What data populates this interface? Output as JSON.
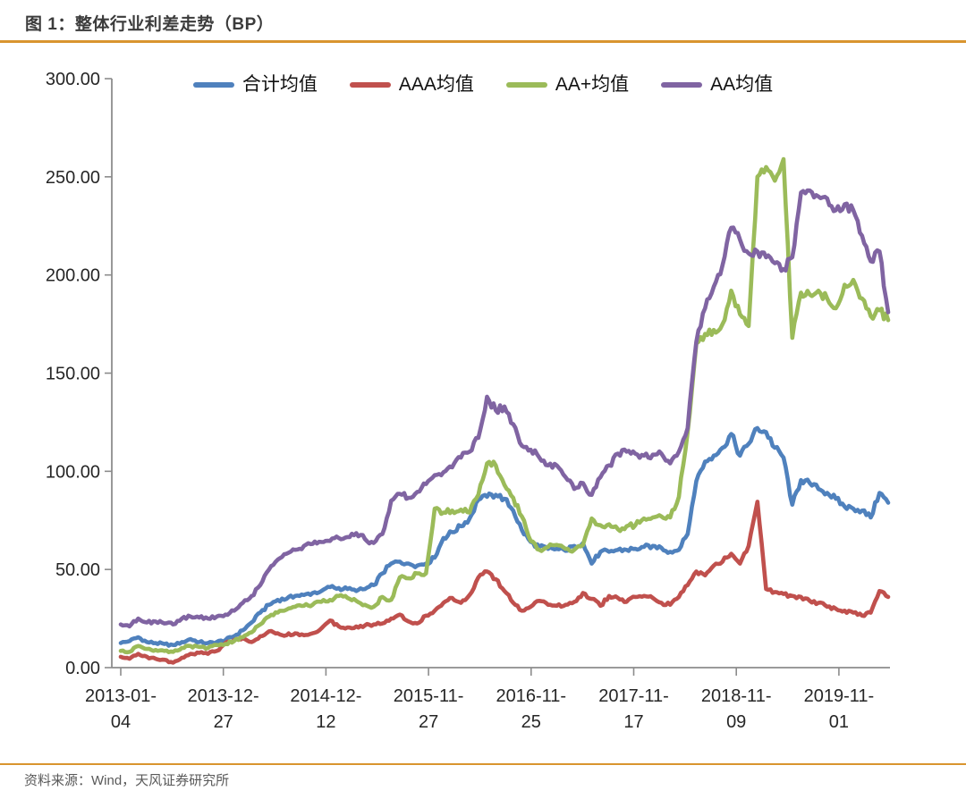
{
  "figure": {
    "title": "图 1：整体行业利差走势（BP）",
    "source": "资料来源：Wind，天风证券研究所"
  },
  "accent_rule_color": "#d9952f",
  "axis_color": "#8c8c8c",
  "chart_data": {
    "type": "line",
    "title": "整体行业利差走势（BP）",
    "unit": "BP",
    "grid": false,
    "legend_position": "top",
    "ylim": [
      0,
      300
    ],
    "y_tick_labels": [
      "0.00",
      "50.00",
      "100.00",
      "150.00",
      "200.00",
      "250.00",
      "300.00"
    ],
    "x_tick_labels": [
      "2013-01-04",
      "2013-12-27",
      "2014-12-12",
      "2015-11-27",
      "2016-11-25",
      "2017-11-17",
      "2018-11-09",
      "2019-11-01"
    ],
    "x": [
      "2013-01",
      "2013-02",
      "2013-03",
      "2013-04",
      "2013-05",
      "2013-06",
      "2013-07",
      "2013-08",
      "2013-09",
      "2013-10",
      "2013-11",
      "2013-12",
      "2014-01",
      "2014-02",
      "2014-03",
      "2014-04",
      "2014-05",
      "2014-06",
      "2014-07",
      "2014-08",
      "2014-09",
      "2014-10",
      "2014-11",
      "2014-12",
      "2015-01",
      "2015-02",
      "2015-03",
      "2015-04",
      "2015-05",
      "2015-06",
      "2015-07",
      "2015-08",
      "2015-09",
      "2015-10",
      "2015-11",
      "2015-12",
      "2016-01",
      "2016-02",
      "2016-03",
      "2016-04",
      "2016-05",
      "2016-06",
      "2016-07",
      "2016-08",
      "2016-09",
      "2016-10",
      "2016-11",
      "2016-12",
      "2017-01",
      "2017-02",
      "2017-03",
      "2017-04",
      "2017-05",
      "2017-06",
      "2017-07",
      "2017-08",
      "2017-09",
      "2017-10",
      "2017-11",
      "2017-12",
      "2018-01",
      "2018-02",
      "2018-03",
      "2018-04",
      "2018-05",
      "2018-06",
      "2018-07",
      "2018-08",
      "2018-09",
      "2018-10",
      "2018-11",
      "2018-12",
      "2019-01",
      "2019-02",
      "2019-03",
      "2019-04",
      "2019-05",
      "2019-06",
      "2019-07",
      "2019-08",
      "2019-09",
      "2019-10",
      "2019-11",
      "2019-12",
      "2020-01",
      "2020-02",
      "2020-03",
      "2020-04",
      "2020-05"
    ],
    "series": [
      {
        "name": "合计均值",
        "color": "#4F81BD",
        "values": [
          12.5,
          13.5,
          15.5,
          13,
          12.5,
          12,
          11.5,
          13,
          14.5,
          13,
          12.5,
          13,
          14,
          16,
          19,
          23,
          28,
          32,
          34.5,
          35,
          36.5,
          37,
          38,
          39,
          41,
          40.5,
          40,
          39,
          40,
          42,
          48,
          53,
          54,
          53,
          52,
          53,
          56,
          66,
          69,
          72,
          76,
          85.5,
          87,
          88,
          86,
          80,
          70,
          64,
          61.5,
          60.5,
          60.5,
          59.5,
          62,
          63.5,
          53,
          59,
          59,
          60,
          60,
          60.5,
          61.5,
          62,
          61,
          59,
          60,
          68,
          95,
          105,
          108,
          112,
          119,
          108,
          114,
          122,
          120,
          112,
          107,
          83,
          95.5,
          94,
          91,
          89,
          86,
          82,
          81,
          80,
          76.5,
          89,
          84
        ]
      },
      {
        "name": "AAA均值",
        "color": "#C0504D",
        "values": [
          5.5,
          4.5,
          7,
          5.5,
          4.5,
          4,
          2.5,
          5,
          7,
          7.5,
          7,
          8.5,
          12.5,
          14,
          15,
          13,
          16,
          18.5,
          17.5,
          16.5,
          17.5,
          16.5,
          17.5,
          20,
          24,
          21,
          20.5,
          21,
          21.5,
          22,
          22.5,
          25,
          27,
          23.5,
          22.5,
          26.5,
          29,
          33,
          35.5,
          33,
          37,
          46,
          49,
          45,
          39,
          33,
          29,
          31,
          34,
          32,
          31.5,
          32,
          33.5,
          38,
          35,
          31.5,
          36.5,
          35.5,
          33.5,
          36,
          36.5,
          35.5,
          33,
          32,
          36,
          42,
          49,
          47,
          52,
          54,
          58,
          53,
          62,
          84.5,
          40,
          38.5,
          37.5,
          36.5,
          36,
          34,
          33,
          31,
          30,
          29,
          28,
          26.5,
          28,
          39,
          36
        ]
      },
      {
        "name": "AA+均值",
        "color": "#9BBB59",
        "values": [
          8.5,
          8,
          11,
          9.5,
          9,
          8.5,
          8,
          10,
          11,
          10.5,
          10,
          11.5,
          12,
          13.5,
          15.5,
          18,
          22,
          26,
          28,
          29.5,
          31,
          31.5,
          32,
          33.5,
          34.5,
          36.5,
          35.5,
          34,
          32,
          31,
          36,
          34.5,
          46,
          45.5,
          48,
          48,
          81,
          79,
          80,
          80.5,
          79,
          88,
          104,
          103,
          93,
          86.5,
          77,
          64.5,
          60,
          61.5,
          62.5,
          60.5,
          60,
          62.5,
          76,
          72.5,
          73,
          70.5,
          72,
          72.5,
          76,
          76.5,
          77,
          76.5,
          87,
          120,
          165,
          170,
          172,
          175,
          192,
          180,
          174,
          250,
          255,
          248,
          259,
          168,
          191,
          190,
          192,
          188,
          183,
          195,
          197.5,
          188,
          179,
          182,
          177
        ]
      },
      {
        "name": "AA均值",
        "color": "#8064A2",
        "values": [
          22,
          21,
          25,
          23,
          23.5,
          22.5,
          22,
          25,
          26,
          25.5,
          25,
          26,
          27,
          29,
          33,
          36.5,
          42,
          50,
          55,
          58,
          60,
          62,
          63,
          64,
          64.5,
          66,
          66.5,
          68.5,
          65.5,
          63.5,
          68,
          85,
          88.5,
          86.5,
          89.5,
          93.5,
          98,
          99.5,
          102,
          107,
          110,
          117,
          138,
          131,
          133,
          124,
          113,
          111,
          107,
          103,
          103,
          97,
          91,
          94,
          88,
          97,
          103,
          109,
          110,
          109,
          108,
          108.5,
          109,
          104,
          110,
          122,
          166,
          183,
          194,
          205,
          224,
          218,
          211,
          212,
          209,
          206,
          203,
          209,
          242,
          243,
          240,
          239,
          233,
          236,
          233,
          220,
          207,
          212,
          181
        ]
      }
    ]
  }
}
